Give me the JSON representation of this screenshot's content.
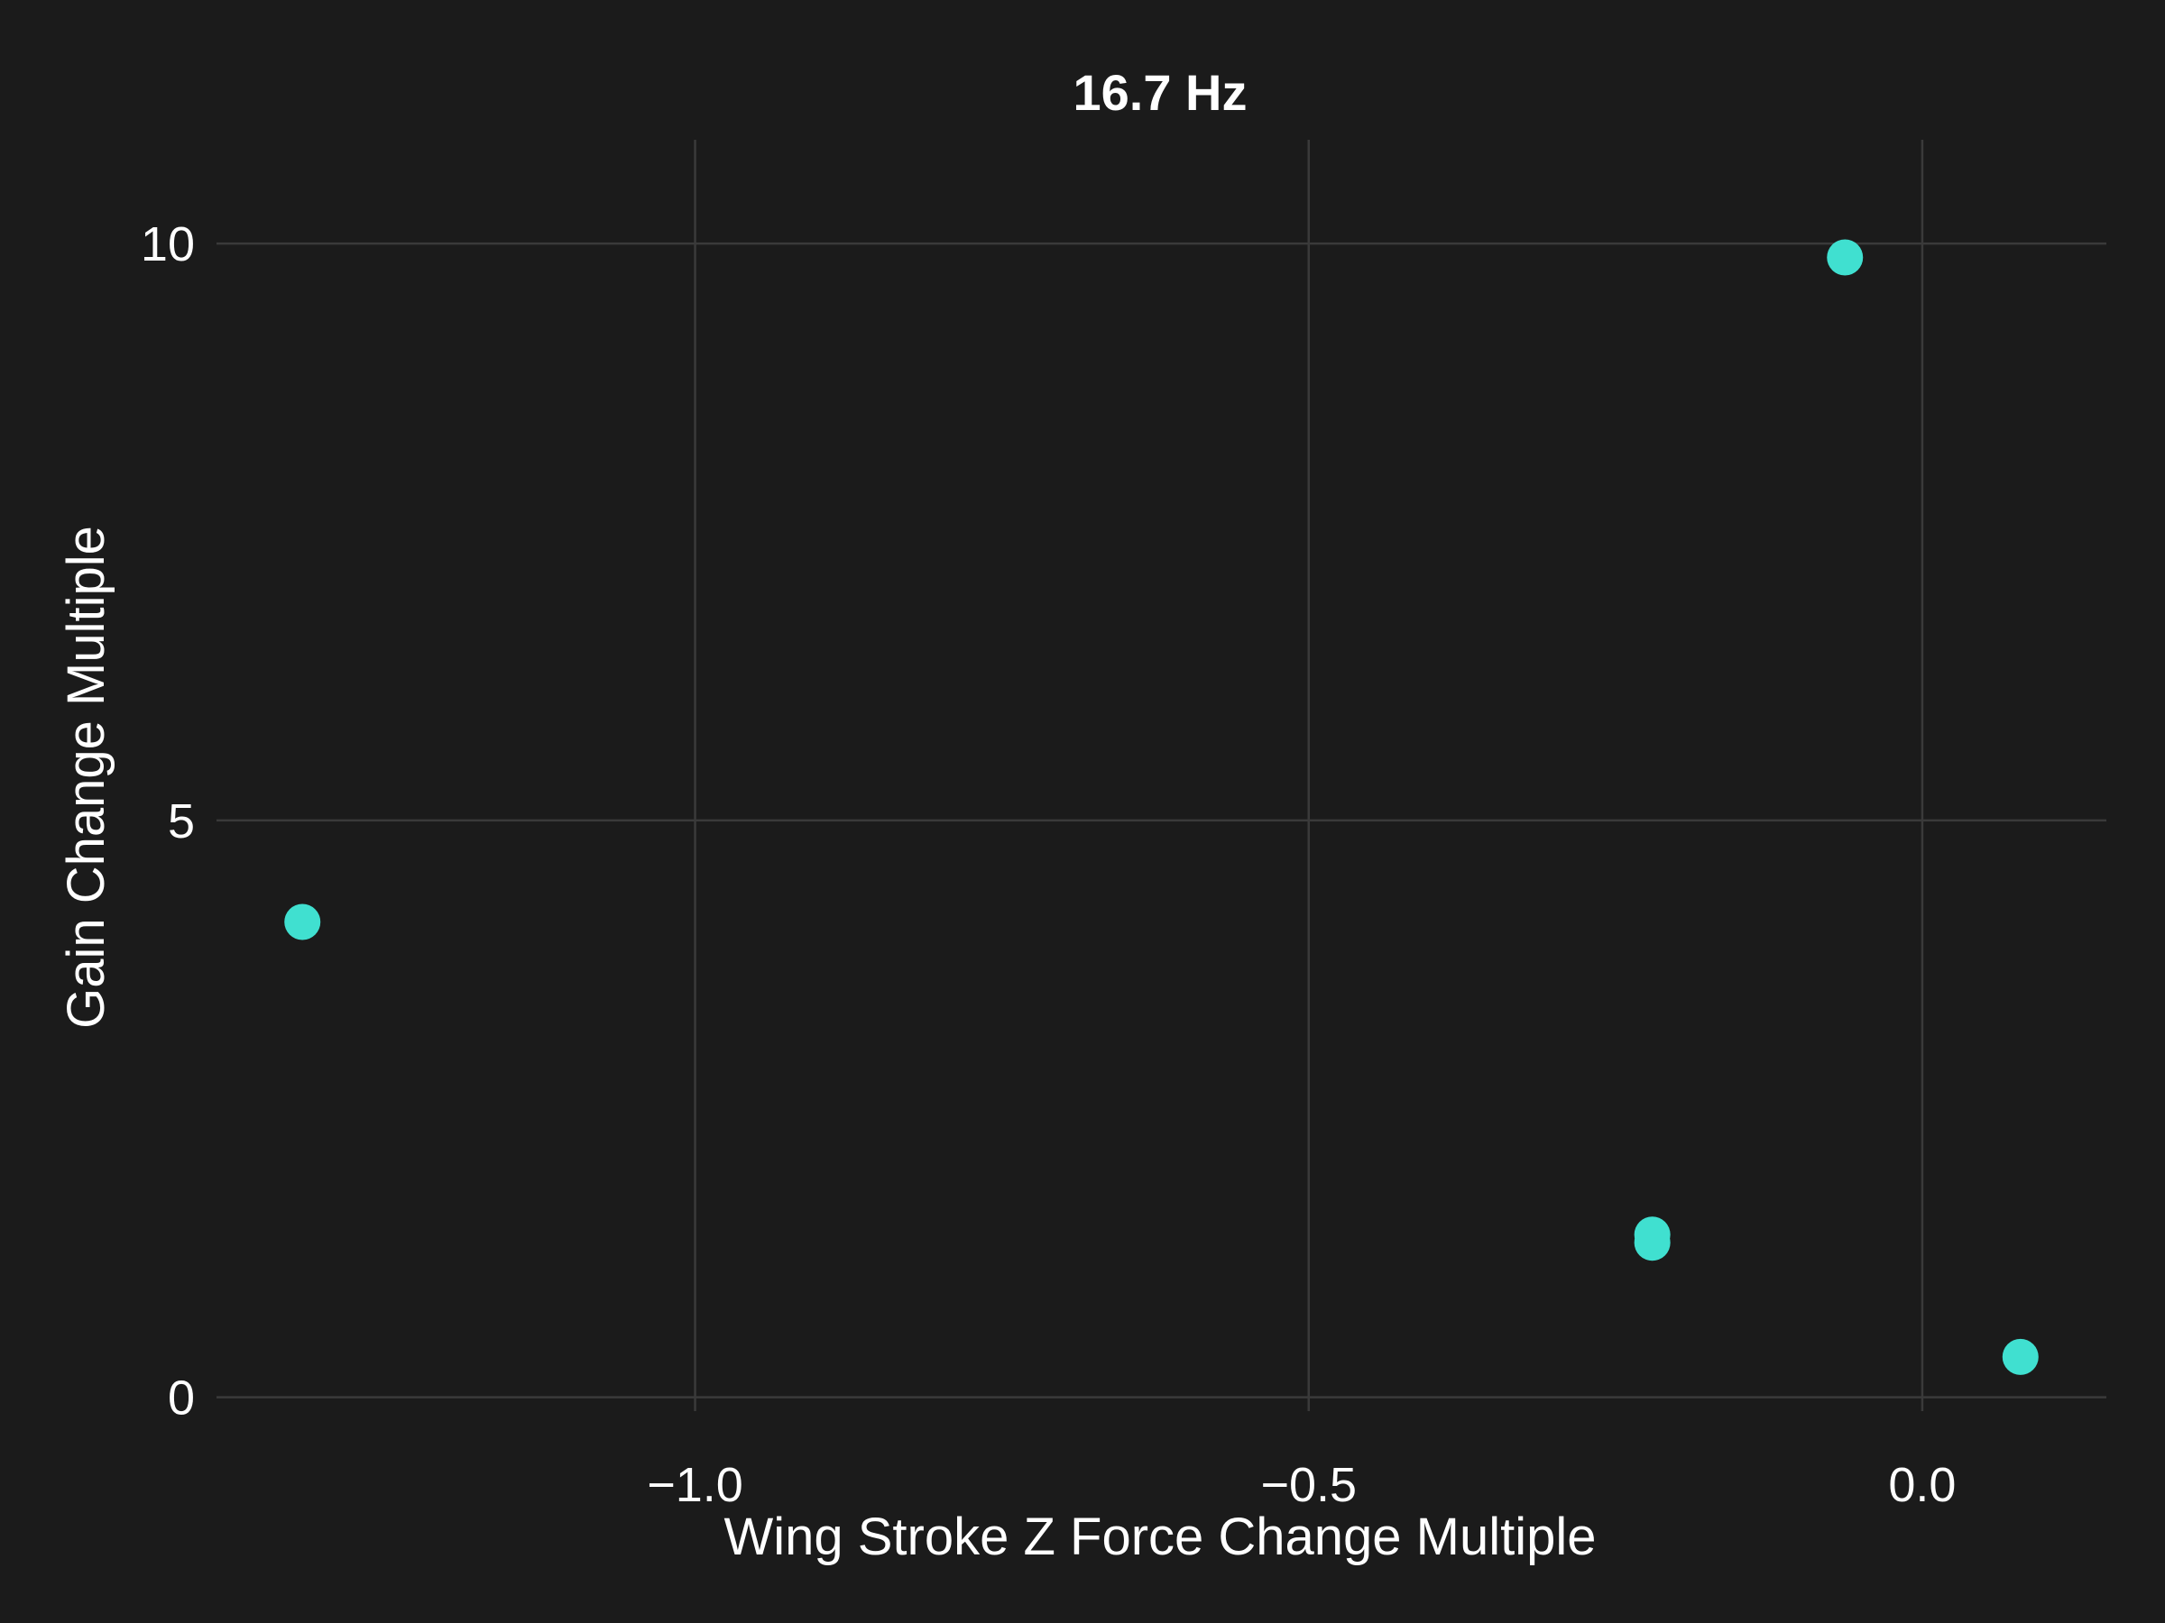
{
  "chart_data": {
    "type": "scatter",
    "title": "16.7 Hz",
    "xlabel": "Wing Stroke Z Force Change Multiple",
    "ylabel": "Gain Change Multiple",
    "xlim": [
      -1.39,
      0.15
    ],
    "ylim": [
      -0.12,
      10.9
    ],
    "x_ticks": [
      -1.0,
      -0.5,
      0.0
    ],
    "x_tick_labels": [
      "−1.0",
      "−0.5",
      "0.0"
    ],
    "y_ticks": [
      0,
      5,
      10
    ],
    "y_tick_labels": [
      "0",
      "5",
      "10"
    ],
    "grid": true,
    "legend": "none",
    "series": [
      {
        "color": "#40e0d0",
        "points": [
          {
            "x": -1.32,
            "y": 4.12
          },
          {
            "x": -0.22,
            "y": 1.41
          },
          {
            "x": -0.22,
            "y": 1.34
          },
          {
            "x": -0.063,
            "y": 9.88
          },
          {
            "x": 0.08,
            "y": 0.35
          }
        ]
      }
    ]
  },
  "colors": {
    "background": "#1b1b1b",
    "grid": "#3a3a3a",
    "text": "#ffffff",
    "marker": "#40e0d0"
  }
}
